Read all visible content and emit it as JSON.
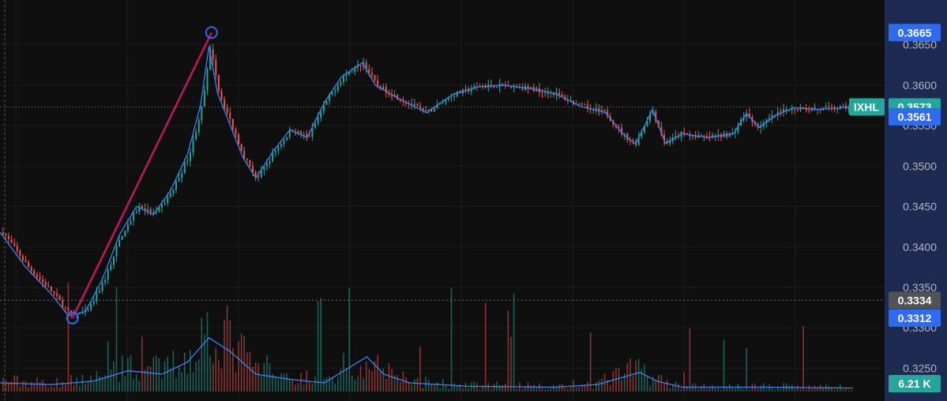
{
  "chart_data": {
    "type": "candlestick",
    "symbol": "IXHL",
    "y_ticks": [
      "0.3650",
      "0.3600",
      "0.3550",
      "0.3500",
      "0.3450",
      "0.3400",
      "0.3350",
      "0.3300",
      "0.3250"
    ],
    "ylim": [
      0.3227,
      0.3676
    ],
    "grid": true,
    "price_tags": [
      {
        "label": "0.3665",
        "price": 0.3665,
        "color": "#2f6bf0",
        "role": "drawing-high"
      },
      {
        "label": "0.3573",
        "price": 0.3573,
        "color": "#26a69a",
        "role": "last-price",
        "symbol_tag": true
      },
      {
        "label": "0.3561",
        "price": 0.3561,
        "color": "#2f6bf0",
        "role": "moving-average"
      },
      {
        "label": "0.3334",
        "price": 0.3334,
        "color": "#505255",
        "role": "crosshair"
      },
      {
        "label": "0.3312",
        "price": 0.3312,
        "color": "#2f6bf0",
        "role": "drawing-low"
      }
    ],
    "volume_tag": {
      "label": "6.21 K",
      "color": "#26a69a"
    },
    "trend_line": {
      "from_price": 0.3312,
      "to_price": 0.3665,
      "color": "#c2185b"
    },
    "price_path": [
      [
        0.0,
        0.3418
      ],
      [
        0.03,
        0.3375
      ],
      [
        0.06,
        0.3342
      ],
      [
        0.08,
        0.3315
      ],
      [
        0.1,
        0.332
      ],
      [
        0.12,
        0.336
      ],
      [
        0.14,
        0.3415
      ],
      [
        0.16,
        0.345
      ],
      [
        0.18,
        0.344
      ],
      [
        0.2,
        0.347
      ],
      [
        0.22,
        0.3515
      ],
      [
        0.235,
        0.3575
      ],
      [
        0.245,
        0.3648
      ],
      [
        0.255,
        0.359
      ],
      [
        0.27,
        0.355
      ],
      [
        0.285,
        0.351
      ],
      [
        0.3,
        0.3485
      ],
      [
        0.32,
        0.3518
      ],
      [
        0.34,
        0.3545
      ],
      [
        0.36,
        0.3535
      ],
      [
        0.38,
        0.3578
      ],
      [
        0.4,
        0.361
      ],
      [
        0.425,
        0.3628
      ],
      [
        0.44,
        0.36
      ],
      [
        0.47,
        0.3582
      ],
      [
        0.5,
        0.3566
      ],
      [
        0.53,
        0.3588
      ],
      [
        0.56,
        0.3598
      ],
      [
        0.59,
        0.36
      ],
      [
        0.62,
        0.3596
      ],
      [
        0.65,
        0.359
      ],
      [
        0.68,
        0.3574
      ],
      [
        0.71,
        0.3566
      ],
      [
        0.73,
        0.354
      ],
      [
        0.745,
        0.3527
      ],
      [
        0.765,
        0.357
      ],
      [
        0.78,
        0.3528
      ],
      [
        0.8,
        0.354
      ],
      [
        0.83,
        0.3535
      ],
      [
        0.86,
        0.354
      ],
      [
        0.875,
        0.3565
      ],
      [
        0.89,
        0.3548
      ],
      [
        0.91,
        0.3563
      ],
      [
        0.93,
        0.3572
      ],
      [
        0.96,
        0.357
      ],
      [
        1.0,
        0.3573
      ]
    ],
    "volume_profile": [
      [
        0.0,
        0.1
      ],
      [
        0.06,
        0.08
      ],
      [
        0.11,
        0.12
      ],
      [
        0.15,
        0.24
      ],
      [
        0.19,
        0.2
      ],
      [
        0.22,
        0.34
      ],
      [
        0.245,
        0.62
      ],
      [
        0.27,
        0.46
      ],
      [
        0.3,
        0.2
      ],
      [
        0.34,
        0.14
      ],
      [
        0.38,
        0.1
      ],
      [
        0.41,
        0.28
      ],
      [
        0.43,
        0.4
      ],
      [
        0.45,
        0.2
      ],
      [
        0.48,
        0.1
      ],
      [
        0.55,
        0.06
      ],
      [
        0.65,
        0.05
      ],
      [
        0.7,
        0.08
      ],
      [
        0.75,
        0.22
      ],
      [
        0.77,
        0.12
      ],
      [
        0.8,
        0.05
      ],
      [
        0.9,
        0.05
      ],
      [
        1.0,
        0.04
      ]
    ]
  }
}
